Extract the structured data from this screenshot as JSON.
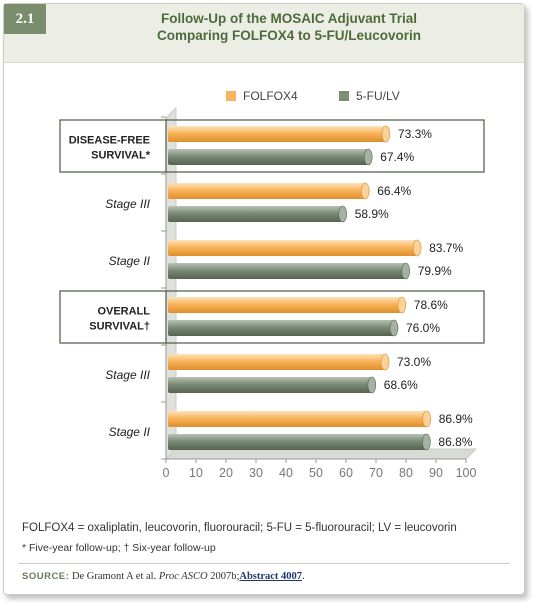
{
  "figure": {
    "badge": "2.1",
    "title_line1": "Follow-Up of the MOSAIC Adjuvant Trial",
    "title_line2": "Comparing FOLFOX4 to 5-FU/Leucovorin"
  },
  "colors": {
    "folfox4": "#f8b45c",
    "fu_lv": "#7c8c78",
    "accent": "#4d6b3a"
  },
  "chart_data": {
    "type": "bar",
    "orientation": "horizontal",
    "categories": [
      "DISEASE-FREE SURVIVAL*",
      "Stage III",
      "Stage II",
      "OVERALL SURVIVAL†",
      "Stage III",
      "Stage II"
    ],
    "category_lines": [
      [
        "DISEASE-FREE",
        "SURVIVAL*"
      ],
      [
        "Stage III"
      ],
      [
        "Stage II"
      ],
      [
        "OVERALL",
        "SURVIVAL†"
      ],
      [
        "Stage III"
      ],
      [
        "Stage II"
      ]
    ],
    "category_style": [
      "group",
      "sub",
      "sub",
      "group",
      "sub",
      "sub"
    ],
    "series": [
      {
        "name": "FOLFOX4",
        "values": [
          73.3,
          66.4,
          83.7,
          78.6,
          73.0,
          86.9
        ],
        "labels": [
          "73.3%",
          "66.4%",
          "83.7%",
          "78.6%",
          "73.0%",
          "86.9%"
        ]
      },
      {
        "name": "5-FU/LV",
        "values": [
          67.4,
          58.9,
          79.9,
          76.0,
          68.6,
          86.8
        ],
        "labels": [
          "67.4%",
          "58.9%",
          "79.9%",
          "76.0%",
          "68.6%",
          "86.8%"
        ]
      }
    ],
    "xlim": [
      0,
      100
    ],
    "xticks": [
      "0",
      "10",
      "20",
      "30",
      "40",
      "50",
      "60",
      "70",
      "80",
      "90",
      "100"
    ],
    "legend": "top-center",
    "grid": false
  },
  "footnotes": {
    "abbreviations": "FOLFOX4 = oxaliplatin, leucovorin, fluorouracil; 5-FU = 5-fluorouracil; LV = leucovorin",
    "followup": "* Five-year follow-up; † Six-year follow-up"
  },
  "source": {
    "label": "SOURCE:",
    "text": "De Gramont A et al.",
    "journal": "Proc ASCO",
    "year": "2007b;",
    "abstract": "Abstract 4007",
    "end": "."
  }
}
